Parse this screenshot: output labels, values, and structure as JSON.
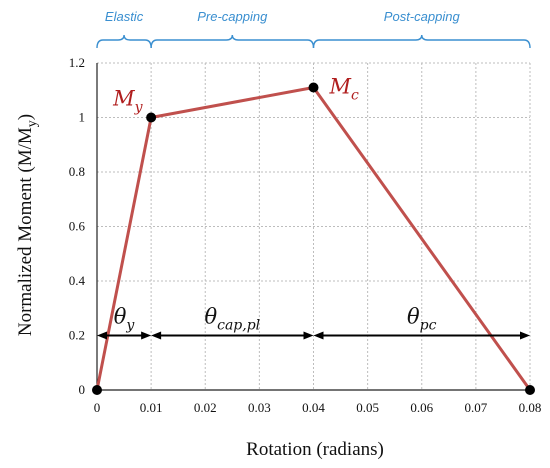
{
  "chart_data": {
    "type": "line",
    "title": "",
    "xlabel": "Rotation (radians)",
    "ylabel": "Normalized Moment (M/M",
    "ylabel_sub": "y",
    "ylabel_tail": ")",
    "xlim": [
      0,
      0.08
    ],
    "ylim": [
      0,
      1.2
    ],
    "grid": true,
    "x_ticks": [
      0,
      0.01,
      0.02,
      0.03,
      0.04,
      0.05,
      0.06,
      0.07,
      0.08
    ],
    "x_tick_labels": [
      "0",
      "0.01",
      "0.02",
      "0.03",
      "0.04",
      "0.05",
      "0.06",
      "0.07",
      "0.08"
    ],
    "y_ticks": [
      0,
      0.2,
      0.4,
      0.6,
      0.8,
      1,
      1.2
    ],
    "y_tick_labels": [
      "0",
      "0.2",
      "0.4",
      "0.6",
      "0.8",
      "1",
      "1.2"
    ],
    "series": [
      {
        "color": "#c0504d",
        "x": [
          0,
          0.01,
          0.04,
          0.08
        ],
        "y": [
          0,
          1.0,
          1.11,
          0
        ]
      }
    ],
    "point_labels": [
      {
        "base": "M",
        "sub": "y",
        "x": 0.01,
        "y": 1.0
      },
      {
        "base": "M",
        "sub": "c",
        "x": 0.04,
        "y": 1.11
      }
    ],
    "regions": [
      {
        "label": "Elastic",
        "x0": 0,
        "x1": 0.01
      },
      {
        "label": "Pre-capping",
        "x0": 0.01,
        "x1": 0.04
      },
      {
        "label": "Post-capping",
        "x0": 0.04,
        "x1": 0.08
      }
    ],
    "dimensions": [
      {
        "base": "θ",
        "sub": "y",
        "x0": 0,
        "x1": 0.01,
        "y": 0.2
      },
      {
        "base": "θ",
        "sub": "cap,pl",
        "x0": 0.01,
        "x1": 0.04,
        "y": 0.2
      },
      {
        "base": "θ",
        "sub": "pc",
        "x0": 0.04,
        "x1": 0.08,
        "y": 0.2
      }
    ],
    "colors": {
      "line": "#c0504d",
      "point_label": "#b01e1e",
      "region": "#3a8fd0",
      "grid": "#bdbdbd"
    }
  }
}
